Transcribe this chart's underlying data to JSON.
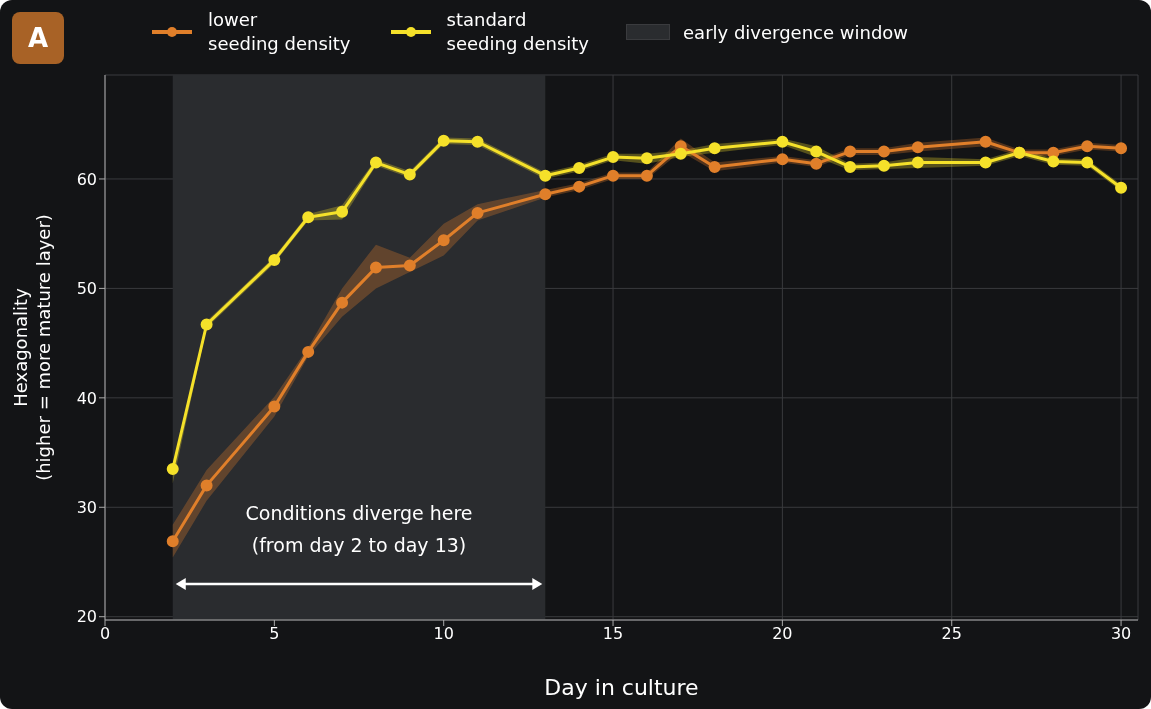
{
  "chart_data": {
    "type": "line",
    "title": "A",
    "xlabel": "Day in culture",
    "ylabel": "Hexagonality\n(higher = more mature layer)",
    "x": [
      2,
      3,
      5,
      6,
      7,
      8,
      9,
      10,
      11,
      13,
      14,
      15,
      16,
      17,
      18,
      20,
      21,
      22,
      23,
      24,
      26,
      27,
      28,
      29,
      30
    ],
    "series": [
      {
        "name": "lower\nseeding density",
        "color": "#e07f2a",
        "values": [
          26.9,
          32.0,
          39.2,
          44.2,
          48.7,
          51.9,
          52.1,
          54.4,
          56.9,
          58.6,
          59.3,
          60.3,
          60.3,
          63.0,
          61.1,
          61.8,
          61.4,
          62.5,
          62.5,
          62.9,
          63.4,
          62.4,
          62.4,
          63.0,
          62.8
        ],
        "lower": [
          25.4,
          30.6,
          38.3,
          43.8,
          47.4,
          50.0,
          51.5,
          53.0,
          56.2,
          58.3,
          59.0,
          60.0,
          60.0,
          62.5,
          60.7,
          61.5,
          61.1,
          62.2,
          62.2,
          62.5,
          63.0,
          62.1,
          62.1,
          62.7,
          62.5
        ],
        "upper": [
          28.4,
          33.4,
          40.1,
          44.6,
          50.0,
          54.0,
          52.8,
          55.9,
          57.7,
          59.0,
          59.6,
          60.6,
          60.6,
          63.7,
          61.5,
          62.1,
          61.7,
          62.8,
          62.8,
          63.3,
          63.8,
          62.7,
          62.7,
          63.3,
          63.1
        ]
      },
      {
        "name": "standard\nseeding density",
        "color": "#f5e12a",
        "values": [
          33.5,
          46.7,
          52.6,
          56.5,
          57.0,
          61.5,
          60.4,
          63.5,
          63.4,
          60.3,
          61.0,
          62.0,
          61.9,
          62.3,
          62.8,
          63.4,
          62.5,
          61.1,
          61.2,
          61.5,
          61.5,
          62.4,
          61.6,
          61.5,
          59.2
        ],
        "lower": [
          32.2,
          46.4,
          52.3,
          56.2,
          56.3,
          61.2,
          60.1,
          63.2,
          63.1,
          60.0,
          60.7,
          61.7,
          61.4,
          62.0,
          62.4,
          63.1,
          62.0,
          60.8,
          60.9,
          61.0,
          61.2,
          62.1,
          61.3,
          61.2,
          58.9
        ],
        "upper": [
          33.8,
          47.0,
          52.9,
          56.8,
          57.6,
          61.8,
          60.7,
          63.8,
          63.7,
          60.6,
          61.3,
          62.3,
          62.3,
          62.6,
          63.2,
          63.7,
          63.0,
          61.4,
          61.5,
          62.0,
          61.8,
          62.7,
          61.9,
          61.8,
          59.5
        ]
      }
    ],
    "bands": [
      {
        "axis": "x",
        "from": 2,
        "to": 13,
        "label": "early divergence window",
        "color": "#2a2c2f"
      }
    ],
    "annotations": [
      "Conditions diverge here\n(from day 2 to day 13)"
    ],
    "xlim": [
      0,
      30.5
    ],
    "xticks": [
      0,
      5,
      10,
      15,
      20,
      25,
      30
    ],
    "ylim": [
      19.7,
      69.5
    ],
    "yticks": [
      20,
      30,
      40,
      50,
      60
    ],
    "grid": true,
    "legend": "top",
    "marker": "circle",
    "line_style": "solid"
  }
}
